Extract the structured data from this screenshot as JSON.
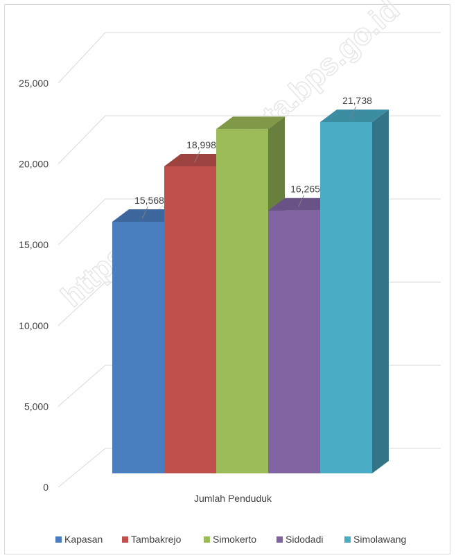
{
  "chart_data": {
    "type": "bar",
    "categories": [
      "Jumlah Penduduk"
    ],
    "series": [
      {
        "name": "Kapasan",
        "values": [
          15568
        ],
        "color": "#4a7ebf"
      },
      {
        "name": "Tambakrejo",
        "values": [
          18998
        ],
        "color": "#c0504d"
      },
      {
        "name": "Simokerto",
        "values": [
          21300
        ],
        "color": "#9bbb59"
      },
      {
        "name": "Sidodadi",
        "values": [
          16265
        ],
        "color": "#8064a2"
      },
      {
        "name": "Simolawang",
        "values": [
          21738
        ],
        "color": "#4bacc6"
      }
    ],
    "data_labels": [
      "15,568",
      "18,998",
      "",
      "16,265",
      "21,738"
    ],
    "xlabel": "Jumlah Penduduk",
    "ylabel": "",
    "ylim": [
      0,
      25000
    ],
    "y_ticks": [
      0,
      5000,
      10000,
      15000,
      20000,
      25000
    ],
    "y_tick_labels": [
      "0",
      "5,000",
      "10,000",
      "15,000",
      "20,000",
      "25,000"
    ],
    "grid": true,
    "legend_position": "bottom",
    "style": "3d-column"
  },
  "watermark": "https://surabayakota.bps.go.id"
}
